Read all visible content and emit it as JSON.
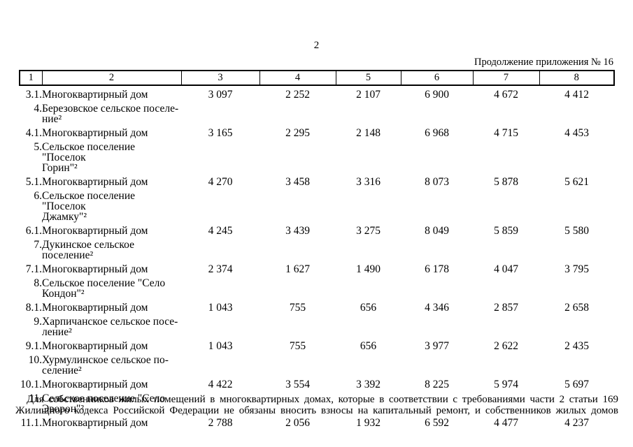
{
  "page": {
    "number": "2",
    "continuation": "Продолжение приложения № 16",
    "colors": {
      "text": "#000000",
      "background": "#ffffff",
      "border": "#000000"
    }
  },
  "table": {
    "column_numbers": [
      "1",
      "2",
      "3",
      "4",
      "5",
      "6",
      "7",
      "8"
    ],
    "rows": [
      {
        "num": "3.1.",
        "name": "Многоквартирный дом",
        "values": [
          "3 097",
          "2 252",
          "2 107",
          "6 900",
          "4 672",
          "4 412"
        ]
      },
      {
        "num": "4.",
        "name": "Березовское сельское поселе-\nние²",
        "values": []
      },
      {
        "num": "4.1.",
        "name": "Многоквартирный дом",
        "values": [
          "3 165",
          "2 295",
          "2 148",
          "6 968",
          "4 715",
          "4 453"
        ]
      },
      {
        "num": "5.",
        "name": "Сельское поселение \"Поселок\nГорин\"²",
        "values": []
      },
      {
        "num": "5.1.",
        "name": "Многоквартирный дом",
        "values": [
          "4 270",
          "3 458",
          "3 316",
          "8 073",
          "5 878",
          "5 621"
        ]
      },
      {
        "num": "6.",
        "name": "Сельское поселение \"Поселок\nДжамку\"²",
        "values": []
      },
      {
        "num": "6.1.",
        "name": "Многоквартирный дом",
        "values": [
          "4 245",
          "3 439",
          "3 275",
          "8 049",
          "5 859",
          "5 580"
        ]
      },
      {
        "num": "7.",
        "name": "Дукинское сельское поселение²",
        "values": []
      },
      {
        "num": "7.1.",
        "name": "Многоквартирный дом",
        "values": [
          "2 374",
          "1 627",
          "1 490",
          "6 178",
          "4 047",
          "3 795"
        ]
      },
      {
        "num": "8.",
        "name": "Сельское поселение \"Село\nКондон\"²",
        "values": []
      },
      {
        "num": "8.1.",
        "name": "Многоквартирный дом",
        "values": [
          "1 043",
          "755",
          "656",
          "4 346",
          "2 857",
          "2 658"
        ]
      },
      {
        "num": "9.",
        "name": "Харпичанское сельское посе-\nление²",
        "values": []
      },
      {
        "num": "9.1.",
        "name": "Многоквартирный дом",
        "values": [
          "1 043",
          "755",
          "656",
          "3 977",
          "2 622",
          "2 435"
        ]
      },
      {
        "num": "10.",
        "name": "Хурмулинское сельское по-\nселение²",
        "values": []
      },
      {
        "num": "10.1.",
        "name": "Многоквартирный дом",
        "values": [
          "4 422",
          "3 554",
          "3 392",
          "8 225",
          "5 974",
          "5 697"
        ]
      },
      {
        "num": "11.",
        "name": "Сельское поселение \"Село\nЭворон\"²",
        "values": []
      },
      {
        "num": "11.1.",
        "name": "Многоквартирный дом",
        "values": [
          "2 788",
          "2 056",
          "1 932",
          "6 592",
          "4 477",
          "4 237"
        ]
      }
    ]
  },
  "footnote": {
    "line1": "Для собственников жилых помещений в многоквартирных домах, которые в соответствии с требованиями части 2 статьи 169",
    "line2": "Жилищного кодекса Российской Федерации не обязаны вносить взносы на капитальный ремонт, и собственников жилых домов"
  }
}
